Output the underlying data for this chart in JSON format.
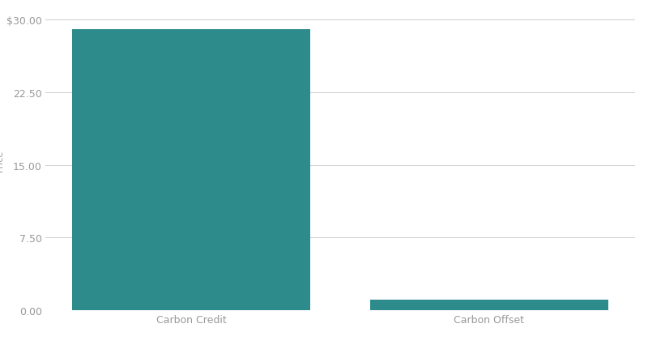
{
  "categories": [
    "Carbon Credit",
    "Carbon Offset"
  ],
  "values": [
    29.0,
    1.1
  ],
  "bar_color": "#2e8b8b",
  "bar_width": 0.8,
  "yticks": [
    0.0,
    7.5,
    15.0,
    22.5,
    30.0
  ],
  "ytick_labels": [
    "0.00",
    "7.50",
    "15.00",
    "22.50",
    "$30.00"
  ],
  "ylim": [
    0,
    31.0
  ],
  "background_color": "#ffffff",
  "grid_color": "#cccccc",
  "tick_label_color": "#999999",
  "axis_label_color": "#999999",
  "font_size_ticks": 9,
  "font_size_ylabel": 8,
  "font_size_xticks": 9
}
